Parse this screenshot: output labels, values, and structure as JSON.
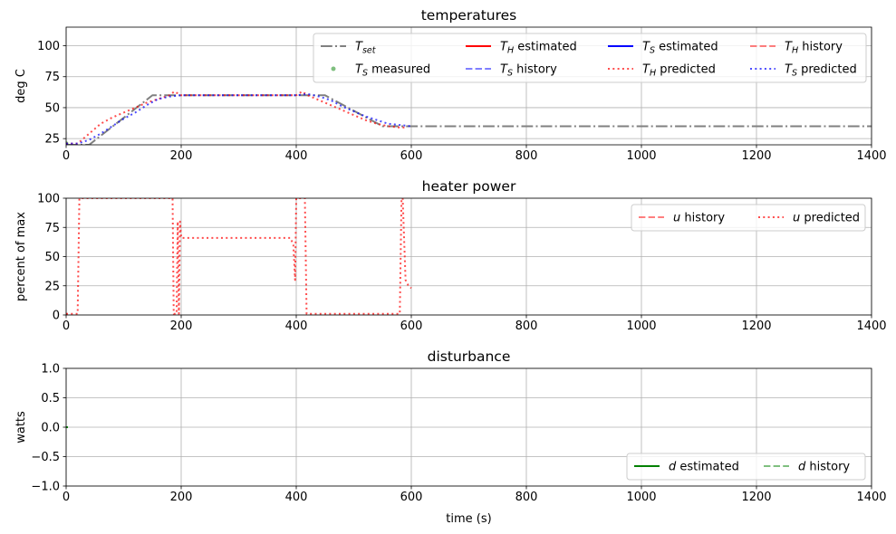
{
  "figure": {
    "xlabel": "time (s)",
    "x_ticks": [
      0,
      200,
      400,
      600,
      800,
      1000,
      1200,
      1400
    ],
    "xlim": [
      0,
      1400
    ]
  },
  "colors": {
    "setpoint": "#808080",
    "heater": "#ff0000",
    "sensor": "#0000ff",
    "disturbance": "#008000",
    "grid": "#b0b0b0"
  },
  "chart_data": [
    {
      "type": "line",
      "title": "temperatures",
      "ylabel": "deg C",
      "xlim": [
        0,
        1400
      ],
      "ylim": [
        20,
        115
      ],
      "y_ticks": [
        25,
        50,
        75,
        100
      ],
      "grid": true,
      "legend_position": "top-right",
      "legend_columns": 4,
      "series": [
        {
          "name": "T_set",
          "label_main": "T",
          "label_sub": "set",
          "label_rest": "",
          "style": "dashdot",
          "color": "#808080",
          "opacity": 1,
          "width": 2,
          "x": [
            0,
            40,
            150,
            410,
            450,
            550,
            600,
            1400
          ],
          "y": [
            20,
            20,
            60,
            60,
            60,
            35,
            35,
            35
          ]
        },
        {
          "name": "T_H estimated",
          "label_main": "T",
          "label_sub": "H",
          "label_rest": "estimated",
          "style": "solid",
          "color": "#ff0000",
          "opacity": 1,
          "width": 2,
          "x": [
            0,
            2
          ],
          "y": [
            21,
            21
          ]
        },
        {
          "name": "T_S estimated",
          "label_main": "T",
          "label_sub": "S",
          "label_rest": "estimated",
          "style": "solid",
          "color": "#0000ff",
          "opacity": 1,
          "width": 2,
          "x": [
            0,
            2
          ],
          "y": [
            21,
            21
          ]
        },
        {
          "name": "T_H history",
          "label_main": "T",
          "label_sub": "H",
          "label_rest": "history",
          "style": "dashed",
          "color": "#ff0000",
          "opacity": 0.5,
          "width": 2,
          "x": [
            0,
            2
          ],
          "y": [
            21,
            21
          ]
        },
        {
          "name": "T_S measured",
          "label_main": "T",
          "label_sub": "S",
          "label_rest": "measured",
          "style": "marker",
          "color": "#008000",
          "opacity": 0.5,
          "width": 2,
          "x": [
            0
          ],
          "y": [
            21
          ]
        },
        {
          "name": "T_S history",
          "label_main": "T",
          "label_sub": "S",
          "label_rest": "history",
          "style": "dashed",
          "color": "#0000ff",
          "opacity": 0.5,
          "width": 2,
          "x": [
            0,
            2
          ],
          "y": [
            21,
            21
          ]
        },
        {
          "name": "T_H predicted",
          "label_main": "T",
          "label_sub": "H",
          "label_rest": "predicted",
          "style": "dotted",
          "color": "#ff0000",
          "opacity": 0.7,
          "width": 2,
          "x": [
            0,
            20,
            40,
            60,
            80,
            100,
            120,
            140,
            160,
            180,
            188,
            200,
            300,
            400,
            410,
            420,
            450,
            480,
            500,
            520,
            540,
            560,
            580,
            590
          ],
          "y": [
            21,
            21,
            29,
            37,
            42,
            46,
            50,
            54,
            57,
            60,
            63,
            60,
            60,
            60,
            63,
            60,
            54,
            48,
            44,
            40,
            37,
            35,
            34,
            34
          ]
        },
        {
          "name": "T_S predicted",
          "label_main": "T",
          "label_sub": "S",
          "label_rest": "predicted",
          "style": "dotted",
          "color": "#0000ff",
          "opacity": 0.7,
          "width": 2,
          "x": [
            0,
            20,
            40,
            60,
            80,
            100,
            120,
            140,
            160,
            180,
            200,
            300,
            400,
            420,
            440,
            460,
            480,
            500,
            520,
            540,
            560,
            580,
            600
          ],
          "y": [
            21,
            21,
            24,
            29,
            35,
            41,
            46,
            52,
            57,
            59,
            60,
            60,
            60,
            61,
            59,
            56,
            51,
            47,
            43,
            40,
            37,
            36,
            35
          ]
        }
      ]
    },
    {
      "type": "line",
      "title": "heater power",
      "ylabel": "percent of max",
      "xlim": [
        0,
        1400
      ],
      "ylim": [
        0,
        100
      ],
      "y_ticks": [
        0,
        25,
        50,
        75,
        100
      ],
      "grid": true,
      "legend_position": "top-right",
      "legend_columns": 2,
      "series": [
        {
          "name": "u history",
          "label_main": "u",
          "label_sub": "",
          "label_rest": "history",
          "style": "dashed",
          "color": "#ff0000",
          "opacity": 0.5,
          "width": 2,
          "x": [
            0,
            2
          ],
          "y": [
            1,
            1
          ]
        },
        {
          "name": "u predicted",
          "label_main": "u",
          "label_sub": "",
          "label_rest": "predicted",
          "style": "dotted",
          "color": "#ff0000",
          "opacity": 0.7,
          "width": 2,
          "x": [
            0,
            20,
            23,
            185,
            187,
            192,
            194,
            196,
            198,
            200,
            210,
            390,
            395,
            398,
            400,
            402,
            415,
            418,
            420,
            580,
            583,
            585,
            590,
            595,
            600
          ],
          "y": [
            1,
            1,
            100,
            100,
            1,
            1,
            80,
            1,
            80,
            66,
            66,
            66,
            60,
            30,
            100,
            100,
            100,
            1,
            1,
            1,
            100,
            100,
            30,
            25,
            23
          ]
        }
      ]
    },
    {
      "type": "line",
      "title": "disturbance",
      "ylabel": "watts",
      "xlim": [
        0,
        1400
      ],
      "ylim": [
        -1.0,
        1.0
      ],
      "y_ticks": [
        -1.0,
        -0.5,
        0.0,
        0.5,
        1.0
      ],
      "y_tick_labels": [
        "−1.0",
        "−0.5",
        "0.0",
        "0.5",
        "1.0"
      ],
      "grid": true,
      "legend_position": "bottom-right",
      "legend_columns": 2,
      "series": [
        {
          "name": "d estimated",
          "label_main": "d",
          "label_sub": "",
          "label_rest": "estimated",
          "style": "solid",
          "color": "#008000",
          "opacity": 1,
          "width": 2,
          "x": [
            0,
            3
          ],
          "y": [
            0,
            0
          ]
        },
        {
          "name": "d history",
          "label_main": "d",
          "label_sub": "",
          "label_rest": "history",
          "style": "dashed",
          "color": "#008000",
          "opacity": 0.5,
          "width": 2,
          "x": [
            0,
            3
          ],
          "y": [
            0,
            0
          ]
        }
      ]
    }
  ]
}
